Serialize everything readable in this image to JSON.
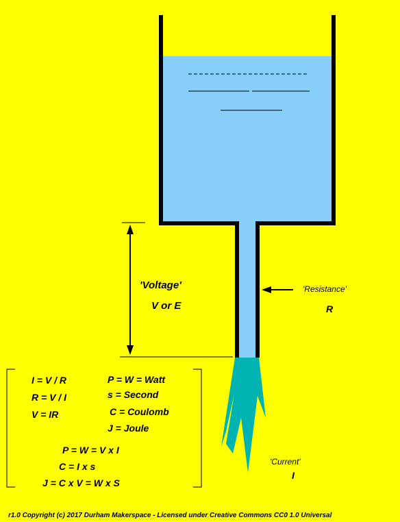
{
  "labels": {
    "voltage": "'Voltage'",
    "voltage_symbol": "V or E",
    "resistance": "'Resistance'",
    "resistance_symbol": "R",
    "current": "'Current'",
    "current_symbol": "I"
  },
  "formulas": {
    "left": [
      "I = V / R",
      "R = V / I",
      "V = IR"
    ],
    "right": [
      "P = W = Watt",
      "s = Second",
      "C = Coulomb",
      "J = Joule"
    ],
    "bottom": [
      "P = W = V x I",
      "C = I x s",
      "J = C x V = W x S"
    ]
  },
  "footer": "r1.0 Copyright (c) 2017 Durham Makerspace - Licensed under Creative Commons CC0 1.0 Universal",
  "colors": {
    "background": "#ffff00",
    "water": "#87cefa",
    "jet": "#00b3b3",
    "outline": "#000000"
  }
}
